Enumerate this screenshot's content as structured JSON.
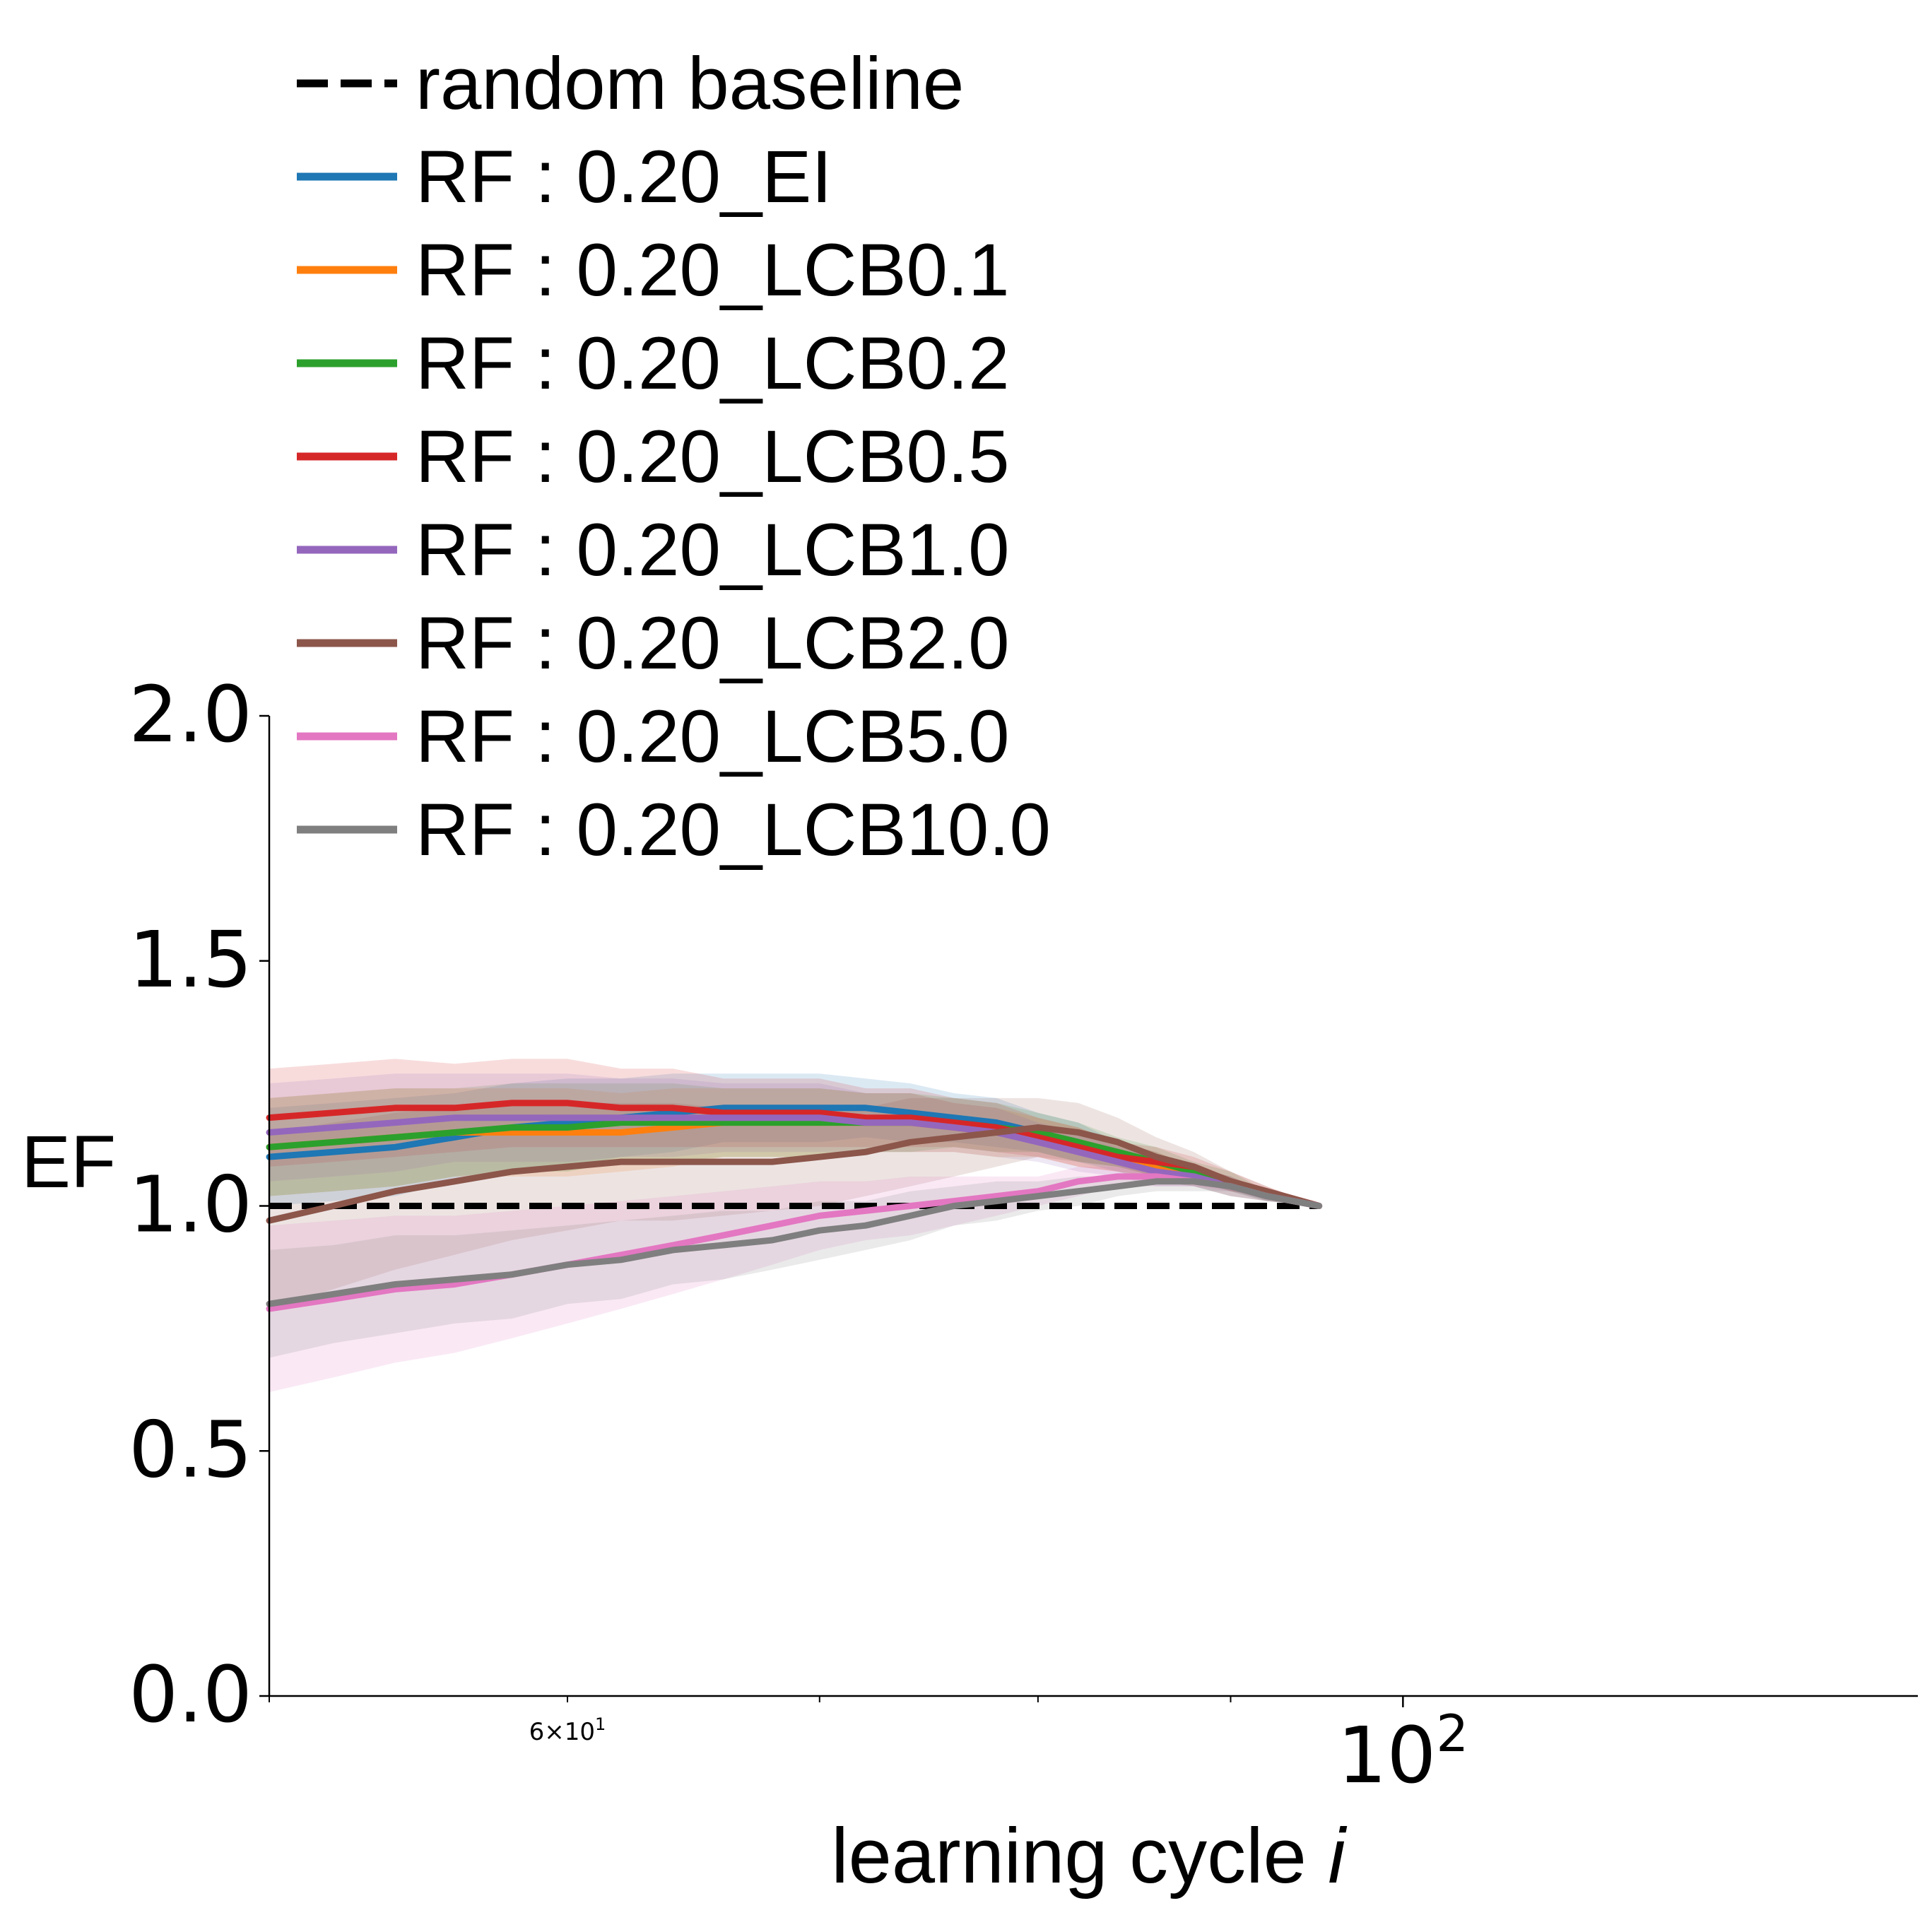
{
  "chart_data": {
    "type": "line",
    "xlabel": "learning cycle",
    "xlabel_var": "i",
    "ylabel": "EF",
    "x_scale": "log",
    "xlim": [
      50,
      137
    ],
    "ylim": [
      0.0,
      2.0
    ],
    "yticks": [
      0.0,
      0.5,
      1.0,
      1.5,
      2.0
    ],
    "ytick_labels": [
      "0.0",
      "0.5",
      "1.0",
      "1.5",
      "2.0"
    ],
    "xtick_major": [
      {
        "value": 100,
        "base": "10",
        "exp": "2"
      }
    ],
    "xtick_minor": [
      {
        "value": 60,
        "mant": "6",
        "base": "10",
        "exp": "1"
      },
      70,
      80,
      90
    ],
    "grid": false,
    "legend_position": "top-left, above plot",
    "baseline": {
      "name": "random baseline",
      "x": [
        50,
        95
      ],
      "y": [
        1.0,
        1.0
      ],
      "color": "#000000"
    },
    "x": [
      50,
      52,
      54,
      56,
      58,
      60,
      62,
      64,
      66,
      68,
      70,
      72,
      74,
      76,
      78,
      80,
      82,
      84,
      86,
      88,
      90,
      92,
      95
    ],
    "series": [
      {
        "name": "RF : 0.20_EI",
        "color": "#1f77b4",
        "values": [
          1.1,
          1.11,
          1.12,
          1.14,
          1.16,
          1.17,
          1.18,
          1.19,
          1.2,
          1.2,
          1.2,
          1.2,
          1.19,
          1.18,
          1.17,
          1.15,
          1.13,
          1.1,
          1.08,
          1.06,
          1.04,
          1.02,
          1.0
        ],
        "band": [
          0.1,
          0.1,
          0.1,
          0.09,
          0.09,
          0.09,
          0.08,
          0.08,
          0.07,
          0.07,
          0.07,
          0.06,
          0.06,
          0.05,
          0.05,
          0.04,
          0.04,
          0.03,
          0.03,
          0.02,
          0.02,
          0.01,
          0.0
        ]
      },
      {
        "name": "RF : 0.20_LCB0.1",
        "color": "#ff7f0e",
        "values": [
          1.12,
          1.13,
          1.14,
          1.15,
          1.15,
          1.15,
          1.15,
          1.16,
          1.17,
          1.17,
          1.17,
          1.17,
          1.17,
          1.16,
          1.15,
          1.14,
          1.12,
          1.1,
          1.08,
          1.06,
          1.04,
          1.02,
          1.0
        ],
        "band": [
          0.1,
          0.1,
          0.1,
          0.09,
          0.09,
          0.09,
          0.08,
          0.08,
          0.07,
          0.07,
          0.07,
          0.06,
          0.06,
          0.05,
          0.05,
          0.04,
          0.04,
          0.03,
          0.03,
          0.02,
          0.02,
          0.01,
          0.0
        ]
      },
      {
        "name": "RF : 0.20_LCB0.2",
        "color": "#2ca02c",
        "values": [
          1.12,
          1.13,
          1.14,
          1.15,
          1.16,
          1.16,
          1.17,
          1.17,
          1.17,
          1.17,
          1.17,
          1.17,
          1.17,
          1.17,
          1.16,
          1.15,
          1.13,
          1.11,
          1.09,
          1.07,
          1.05,
          1.02,
          1.0
        ],
        "band": [
          0.1,
          0.1,
          0.1,
          0.09,
          0.09,
          0.09,
          0.08,
          0.08,
          0.07,
          0.07,
          0.07,
          0.06,
          0.06,
          0.05,
          0.05,
          0.04,
          0.04,
          0.03,
          0.03,
          0.02,
          0.02,
          0.01,
          0.0
        ]
      },
      {
        "name": "RF : 0.20_LCB0.5",
        "color": "#d62728",
        "values": [
          1.18,
          1.19,
          1.2,
          1.2,
          1.21,
          1.21,
          1.2,
          1.2,
          1.19,
          1.19,
          1.19,
          1.18,
          1.18,
          1.17,
          1.16,
          1.14,
          1.12,
          1.1,
          1.09,
          1.08,
          1.05,
          1.03,
          1.0
        ],
        "band": [
          0.1,
          0.1,
          0.1,
          0.09,
          0.09,
          0.09,
          0.08,
          0.08,
          0.07,
          0.07,
          0.07,
          0.06,
          0.06,
          0.05,
          0.05,
          0.04,
          0.04,
          0.03,
          0.03,
          0.02,
          0.02,
          0.01,
          0.0
        ]
      },
      {
        "name": "RF : 0.20_LCB1.0",
        "color": "#9467bd",
        "values": [
          1.15,
          1.16,
          1.17,
          1.18,
          1.18,
          1.18,
          1.18,
          1.18,
          1.18,
          1.18,
          1.18,
          1.17,
          1.17,
          1.16,
          1.15,
          1.13,
          1.11,
          1.09,
          1.07,
          1.06,
          1.04,
          1.02,
          1.0
        ],
        "band": [
          0.1,
          0.1,
          0.1,
          0.09,
          0.09,
          0.09,
          0.08,
          0.08,
          0.07,
          0.07,
          0.07,
          0.06,
          0.06,
          0.05,
          0.05,
          0.04,
          0.04,
          0.03,
          0.03,
          0.02,
          0.02,
          0.01,
          0.0
        ]
      },
      {
        "name": "RF : 0.20_LCB2.0",
        "color": "#8c564b",
        "values": [
          0.97,
          1.0,
          1.03,
          1.05,
          1.07,
          1.08,
          1.09,
          1.09,
          1.09,
          1.09,
          1.1,
          1.11,
          1.13,
          1.14,
          1.15,
          1.16,
          1.15,
          1.13,
          1.1,
          1.08,
          1.05,
          1.03,
          1.0
        ],
        "band": [
          0.18,
          0.17,
          0.16,
          0.15,
          0.14,
          0.13,
          0.12,
          0.12,
          0.11,
          0.1,
          0.1,
          0.09,
          0.09,
          0.08,
          0.07,
          0.06,
          0.06,
          0.05,
          0.04,
          0.03,
          0.02,
          0.01,
          0.0
        ]
      },
      {
        "name": "RF : 0.20_LCB5.0",
        "color": "#e377c2",
        "values": [
          0.79,
          0.81,
          0.83,
          0.84,
          0.86,
          0.88,
          0.9,
          0.92,
          0.94,
          0.96,
          0.98,
          0.99,
          1.0,
          1.01,
          1.02,
          1.03,
          1.05,
          1.06,
          1.06,
          1.05,
          1.04,
          1.02,
          1.0
        ],
        "band": [
          0.17,
          0.16,
          0.15,
          0.14,
          0.13,
          0.12,
          0.11,
          0.1,
          0.09,
          0.08,
          0.07,
          0.06,
          0.06,
          0.05,
          0.04,
          0.03,
          0.03,
          0.02,
          0.02,
          0.01,
          0.01,
          0.01,
          0.0
        ]
      },
      {
        "name": "RF : 0.20_LCB10.0",
        "color": "#7f7f7f",
        "values": [
          0.8,
          0.82,
          0.84,
          0.85,
          0.86,
          0.88,
          0.89,
          0.91,
          0.92,
          0.93,
          0.95,
          0.96,
          0.98,
          1.0,
          1.01,
          1.02,
          1.03,
          1.04,
          1.05,
          1.05,
          1.04,
          1.02,
          1.0
        ],
        "band": [
          0.11,
          0.1,
          0.1,
          0.09,
          0.09,
          0.08,
          0.08,
          0.07,
          0.07,
          0.06,
          0.06,
          0.05,
          0.05,
          0.04,
          0.04,
          0.03,
          0.03,
          0.02,
          0.02,
          0.02,
          0.01,
          0.01,
          0.0
        ]
      }
    ]
  }
}
